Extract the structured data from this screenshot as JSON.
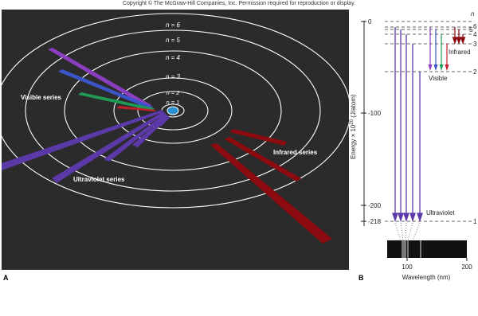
{
  "header": {
    "copyright": "Copyright © The McGraw-Hill Companies, Inc. Permission required for reproduction or display."
  },
  "panel_a": {
    "label": "A",
    "orbits": [
      {
        "n": "1",
        "text": "n = 1"
      },
      {
        "n": "2",
        "text": "n = 2"
      },
      {
        "n": "3",
        "text": "n = 3"
      },
      {
        "n": "4",
        "text": "n = 4"
      },
      {
        "n": "5",
        "text": "n = 5"
      },
      {
        "n": "6",
        "text": "n = 6"
      }
    ],
    "series": {
      "visible": "Visible series",
      "ultraviolet": "Ultraviolet series",
      "infrared": "Infrared series"
    },
    "colors": {
      "background": "#2b2b2b",
      "visible_violet": "#8b3fc0",
      "visible_blue": "#3b55c8",
      "visible_green": "#1f9a55",
      "visible_red": "#c0202a",
      "ultraviolet": "#5b3aa8",
      "infrared": "#8b0b10"
    }
  },
  "panel_b": {
    "label": "B",
    "ylabel": "Energy × 10^20 (J/atom)",
    "ylabel_parts": {
      "pre": "Energy × 10",
      "sup": "20",
      "post": " (J/atom)"
    },
    "y_ticks": [
      "0",
      "-100",
      "-200",
      "-218"
    ],
    "n_header": "n",
    "levels": [
      {
        "n": "1",
        "energy": -218
      },
      {
        "n": "2",
        "energy": -54.5
      },
      {
        "n": "3",
        "energy": -24.2
      },
      {
        "n": "4",
        "energy": -13.6
      },
      {
        "n": "5",
        "energy": -8.7
      },
      {
        "n": "6",
        "energy": -6.1
      }
    ],
    "series_labels": {
      "visible": "Visible",
      "infrared": "Infrared",
      "ultraviolet": "Ultraviolet"
    },
    "spectrum": {
      "ticks": [
        "100",
        "200"
      ],
      "xlabel": "Wavelength (nm)"
    }
  }
}
